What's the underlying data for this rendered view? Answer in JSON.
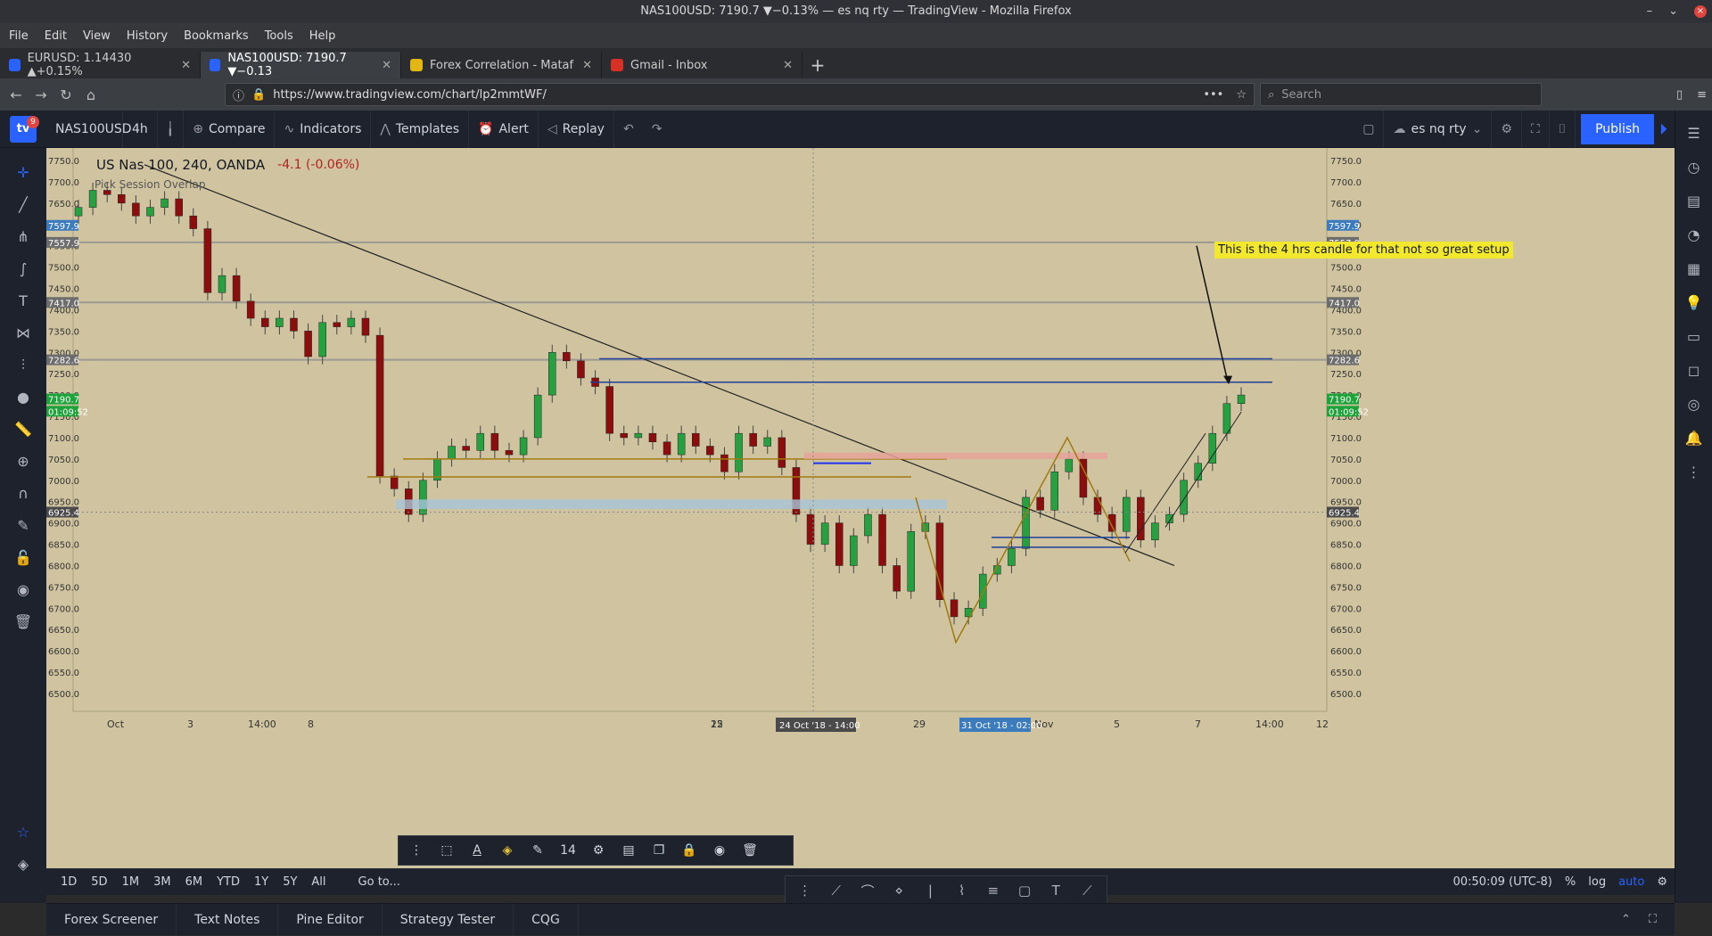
{
  "window": {
    "title": "NAS100USD: 7190.7 ▼−0.13% — es nq rty — TradingView - Mozilla Firefox"
  },
  "menu": [
    "File",
    "Edit",
    "View",
    "History",
    "Bookmarks",
    "Tools",
    "Help"
  ],
  "tabs": [
    {
      "label": "EURUSD: 1.14430 ▲+0.15%",
      "active": false,
      "favicon_color": "#2962ff"
    },
    {
      "label": "NAS100USD: 7190.7 ▼−0.13",
      "active": true,
      "favicon_color": "#2962ff"
    },
    {
      "label": "Forex Correlation - Mataf",
      "active": false,
      "favicon_color": "#e2b714"
    },
    {
      "label": "Gmail - Inbox",
      "active": false,
      "favicon_color": "#d93025"
    }
  ],
  "navbar": {
    "url": "https://www.tradingview.com/chart/lp2mmtWF/",
    "search_placeholder": "Search"
  },
  "tv_toolbar": {
    "badge": "9",
    "symbol": "NAS100USD",
    "interval": "4h",
    "compare": "Compare",
    "indicators": "Indicators",
    "templates": "Templates",
    "alert": "Alert",
    "replay": "Replay",
    "layout_name": "es nq rty",
    "publish": "Publish"
  },
  "chart": {
    "title": "US Nas 100, 240, OANDA",
    "change": "-4.1 (-0.06%)",
    "indicator": "Pick Session Overlap",
    "note": "This is the 4 hrs candle for that not so great setup",
    "price_labels": {
      "level_7597": "7597.9",
      "level_7557": "7557.9",
      "level_7417": "7417.0",
      "level_7282": "7282.6",
      "current": "7190.7",
      "countdown": "01:09:52",
      "crosshair": "6925.4"
    },
    "time_labels": {
      "crosshair_left": "24 Oct '18 - 14:00",
      "crosshair_right": "31 Oct '18 - 02:00"
    },
    "colors": {
      "background": "#cfc49f",
      "bull": "#26a041",
      "bear": "#8b0d0d",
      "note_bg": "#f2e92f"
    }
  },
  "chart_data": {
    "type": "candlestick",
    "symbol": "US Nas 100, 240, OANDA",
    "ylim": [
      6500,
      7750
    ],
    "y_ticks": [
      7750,
      7700,
      7650,
      7600,
      7550,
      7500,
      7450,
      7400,
      7350,
      7300,
      7250,
      7200,
      7150,
      7100,
      7050,
      7000,
      6950,
      6900,
      6850,
      6800,
      6750,
      6700,
      6650,
      6600,
      6550,
      6500
    ],
    "x_ticks": [
      "Oct",
      "3",
      "14:00",
      "8",
      "15",
      "22",
      "24 Oct '18 - 14:00",
      "29",
      "31 Oct '18 - 02:00",
      "Nov",
      "5",
      "7",
      "14:00",
      "12"
    ],
    "horizontal_levels": [
      7557.9,
      7417.0,
      7282.6
    ],
    "last_price": 7190.7,
    "closes": [
      7640,
      7680,
      7670,
      7650,
      7620,
      7640,
      7660,
      7620,
      7590,
      7440,
      7480,
      7420,
      7380,
      7360,
      7380,
      7350,
      7290,
      7370,
      7360,
      7380,
      7340,
      7010,
      6980,
      6920,
      7000,
      7050,
      7080,
      7070,
      7110,
      7070,
      7060,
      7100,
      7200,
      7300,
      7280,
      7240,
      7220,
      7110,
      7100,
      7110,
      7090,
      7060,
      7110,
      7080,
      7060,
      7020,
      7110,
      7080,
      7100,
      7030,
      6920,
      6850,
      6900,
      6800,
      6870,
      6920,
      6800,
      6740,
      6880,
      6900,
      6720,
      6680,
      6700,
      6780,
      6800,
      6840,
      6960,
      6930,
      7020,
      7050,
      6960,
      6920,
      6880,
      6960,
      6860,
      6900,
      6920,
      7000,
      7040,
      7110,
      7180,
      7200
    ]
  },
  "timeframes": [
    "1D",
    "5D",
    "1M",
    "3M",
    "6M",
    "YTD",
    "1Y",
    "5Y",
    "All",
    "Go to..."
  ],
  "status": {
    "clock": "00:50:09 (UTC-8)",
    "percent": "%",
    "log": "log",
    "auto": "auto"
  },
  "panels": [
    "Forex Screener",
    "Text Notes",
    "Pine Editor",
    "Strategy Tester",
    "CQG"
  ],
  "float_toolbar": {
    "font_size": "14"
  }
}
